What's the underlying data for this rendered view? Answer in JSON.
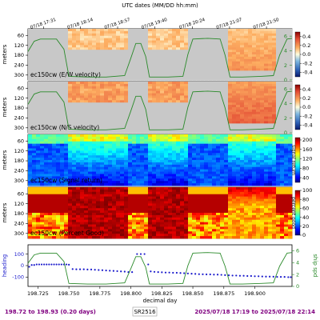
{
  "chart_data": {
    "type": "heatmap",
    "top_axis": {
      "title": "UTC dates (MM/DD hh:mm)",
      "ticks": [
        "07/18 17:31",
        "07/18 18:14",
        "07/18 18:57",
        "07/18 19:40",
        "07/18 20:24",
        "07/18 21:07",
        "07/18 21:50"
      ]
    },
    "x_axis": {
      "label": "decimal day",
      "range": [
        198.717,
        198.93
      ],
      "ticks": [
        198.725,
        198.75,
        198.775,
        198.8,
        198.825,
        198.85,
        198.875,
        198.9
      ],
      "tick_labels": [
        "198.725",
        "198.750",
        "198.775",
        "198.800",
        "198.825",
        "198.850",
        "198.875",
        "198.900"
      ]
    },
    "depth_axis": {
      "label": "meters",
      "range": [
        20,
        330
      ],
      "ticks": [
        60,
        120,
        180,
        240,
        300
      ],
      "tick_labels": [
        "60",
        "120",
        "180",
        "240",
        "300"
      ]
    },
    "speed_axis": {
      "label": "ship spd",
      "range": [
        0,
        7
      ],
      "ticks": [
        0,
        2,
        4,
        6
      ],
      "tick_labels": [
        "0",
        "2",
        "4",
        "6"
      ]
    },
    "panels": [
      {
        "id": "u",
        "title": "ec150cw (E/W velocity)",
        "colorbar": {
          "ticks": [
            "0.4",
            "0.2",
            "0.0",
            "-0.2",
            "-0.4"
          ],
          "range": [
            -0.5,
            0.5
          ],
          "label": ""
        }
      },
      {
        "id": "v",
        "title": "ec150cw (N/S velocity)",
        "colorbar": {
          "ticks": [
            "0.4",
            "0.2",
            "0.0",
            "-0.2",
            "-0.4"
          ],
          "range": [
            -0.5,
            0.5
          ],
          "label": ""
        }
      },
      {
        "id": "amp",
        "title": "ec150cw (Signal return)",
        "colorbar": {
          "ticks": [
            "200",
            "160",
            "120",
            "80",
            "40"
          ],
          "range": [
            20,
            210
          ],
          "label": "signal return"
        }
      },
      {
        "id": "pg",
        "title": "ec150cw (Percent Good)",
        "colorbar": {
          "ticks": [
            "100",
            "80",
            "60",
            "40",
            "20",
            "0"
          ],
          "range": [
            0,
            100
          ],
          "label": "percent good"
        }
      }
    ],
    "ship_speed": {
      "x": [
        198.717,
        198.722,
        198.727,
        198.74,
        198.746,
        198.75,
        198.765,
        198.78,
        198.795,
        198.8,
        198.804,
        198.808,
        198.812,
        198.815,
        198.83,
        198.842,
        198.846,
        198.85,
        198.862,
        198.872,
        198.876,
        198.88,
        198.89,
        198.905,
        198.915,
        198.92,
        198.926,
        198.93
      ],
      "y": [
        3.9,
        5.3,
        5.6,
        5.6,
        4.2,
        0.5,
        0.4,
        0.4,
        0.6,
        3.0,
        5.0,
        5.0,
        3.2,
        0.4,
        0.4,
        0.5,
        3.5,
        5.6,
        5.7,
        5.6,
        3.4,
        0.4,
        0.4,
        0.5,
        0.6,
        3.4,
        5.6,
        5.7
      ]
    },
    "heading": {
      "label": "heading",
      "range": [
        -180,
        180
      ],
      "ticks": [
        100,
        0,
        -100
      ],
      "tick_labels": [
        "100",
        "0",
        "-100"
      ],
      "x": [
        198.718,
        198.72,
        198.722,
        198.724,
        198.726,
        198.728,
        198.73,
        198.732,
        198.734,
        198.736,
        198.738,
        198.74,
        198.742,
        198.744,
        198.746,
        198.748,
        198.75,
        198.753,
        198.756,
        198.759,
        198.762,
        198.765,
        198.768,
        198.771,
        198.774,
        198.777,
        198.78,
        198.783,
        198.786,
        198.789,
        198.792,
        198.795,
        198.798,
        198.801,
        198.805,
        198.808,
        198.811,
        198.814,
        198.816,
        198.819,
        198.822,
        198.825,
        198.828,
        198.831,
        198.834,
        198.837,
        198.84,
        198.843,
        198.846,
        198.849,
        198.852,
        198.855,
        198.858,
        198.861,
        198.864,
        198.867,
        198.87,
        198.873,
        198.876,
        198.879,
        198.882,
        198.885,
        198.888,
        198.891,
        198.894,
        198.897,
        198.9,
        198.903,
        198.906,
        198.909,
        198.912,
        198.915,
        198.918,
        198.921,
        198.924,
        198.927,
        198.929
      ],
      "y": [
        -10,
        5,
        5,
        10,
        10,
        10,
        10,
        10,
        10,
        10,
        10,
        10,
        10,
        10,
        10,
        10,
        8,
        -30,
        -32,
        -32,
        -32,
        -34,
        -34,
        -36,
        -38,
        -40,
        -42,
        -44,
        -46,
        -48,
        -50,
        -52,
        -56,
        -56,
        100,
        100,
        100,
        10,
        -50,
        -54,
        -56,
        -58,
        -60,
        -60,
        -62,
        -62,
        -64,
        -66,
        -68,
        -70,
        -72,
        -74,
        -75,
        -76,
        -76,
        -78,
        -78,
        -80,
        -82,
        -84,
        -86,
        -86,
        -88,
        -88,
        -90,
        -90,
        -92,
        -92,
        -94,
        -95,
        -95,
        -96,
        -98,
        -98,
        -98,
        -100,
        -100
      ]
    }
  },
  "footer": {
    "left": "198.72 to 198.93 (0.20 days)",
    "center": "SR2516",
    "right": "2025/07/18 17:19 to 2025/07/18 22:14"
  },
  "colors": {
    "ship_speed_line": "#2a8a2a",
    "heading_dots": "#1a1acc",
    "bad_data": "#c8c8c8",
    "footer_text": "#800080"
  }
}
